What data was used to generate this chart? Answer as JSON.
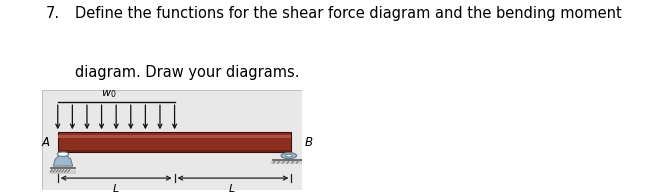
{
  "title_number": "7.",
  "title_text": "Define the functions for the shear force diagram and the bending moment",
  "title_text2": "diagram. Draw your diagrams.",
  "title_fontsize": 10.5,
  "bg_color": "#e8e8e8",
  "beam_color": "#8B3020",
  "beam_highlight": "#b05040",
  "beam_dark": "#3a1010",
  "beam_bottom": "#6a2010",
  "support_color": "#a0b8cc",
  "support_color_dark": "#607888",
  "ground_color": "#b0b0b0",
  "arrow_color": "#111111",
  "dim_color": "#222222",
  "n_arrows": 9,
  "figsize": [
    6.49,
    1.92
  ],
  "dpi": 100
}
